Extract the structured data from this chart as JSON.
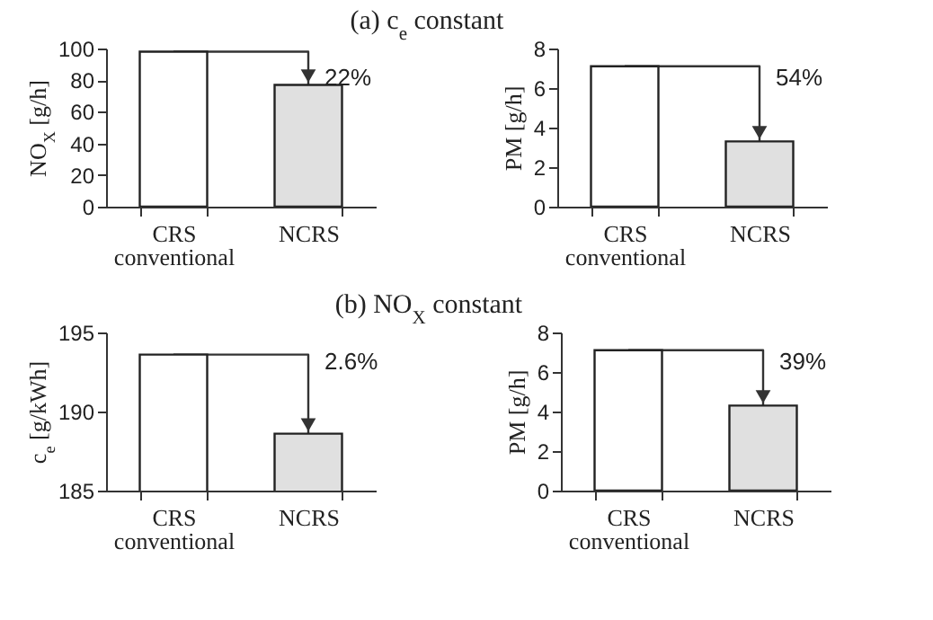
{
  "chart_data": [
    {
      "type": "bar",
      "title": "(a) c$_{e}$ constant",
      "categories": [
        "CRS\nconventional",
        "NCRS"
      ],
      "values": [
        98,
        77
      ],
      "colors": [
        "#ffffff",
        "#e0e0e0"
      ],
      "ylabel": "NO$_{X}$ [g/h]",
      "ylim": [
        0,
        100
      ],
      "yticks": [
        0,
        20,
        40,
        60,
        80,
        100
      ],
      "annotations": [
        "22%"
      ]
    },
    {
      "type": "bar",
      "categories": [
        "CRS\nconventional",
        "NCRS"
      ],
      "values": [
        7.1,
        3.3
      ],
      "colors": [
        "#ffffff",
        "#e0e0e0"
      ],
      "ylabel": "PM [g/h]",
      "ylim": [
        0,
        8
      ],
      "yticks": [
        0,
        2,
        4,
        6,
        8
      ],
      "annotations": [
        "54%"
      ]
    },
    {
      "type": "bar",
      "title": "(b) NO$_{X}$ constant",
      "categories": [
        "CRS\nconventional",
        "NCRS"
      ],
      "values": [
        193.6,
        188.6
      ],
      "colors": [
        "#ffffff",
        "#e0e0e0"
      ],
      "ylabel": "c$_{e}$ [g/kWh]",
      "ylim": [
        185,
        195
      ],
      "yticks": [
        185,
        190,
        195
      ],
      "annotations": [
        "2.6%"
      ]
    },
    {
      "type": "bar",
      "categories": [
        "CRS\nconventional",
        "NCRS"
      ],
      "values": [
        7.1,
        4.3
      ],
      "colors": [
        "#ffffff",
        "#e0e0e0"
      ],
      "ylabel": "PM [g/h]",
      "ylim": [
        0,
        8
      ],
      "yticks": [
        0,
        2,
        4,
        6,
        8
      ],
      "annotations": [
        "39%"
      ]
    }
  ]
}
